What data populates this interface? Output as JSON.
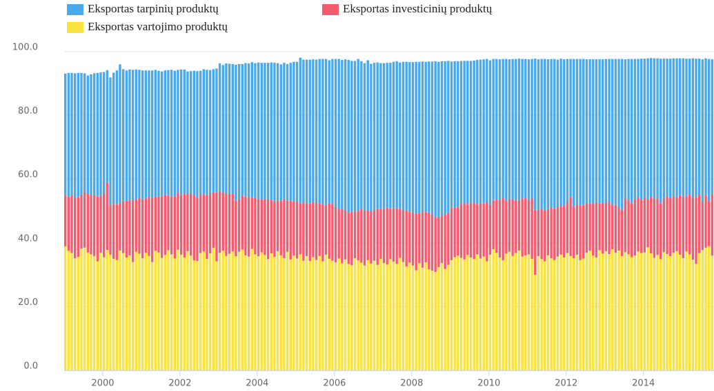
{
  "chart_data": {
    "type": "bar",
    "stacked": true,
    "categories": [
      null,
      null,
      null,
      null,
      null,
      null,
      null,
      null,
      null,
      null,
      null,
      null,
      "2000",
      null,
      null,
      null,
      null,
      null,
      null,
      null,
      null,
      null,
      null,
      null,
      null,
      null,
      null,
      null,
      null,
      null,
      null,
      null,
      null,
      null,
      null,
      null,
      "2002",
      null,
      null,
      null,
      null,
      null,
      null,
      null,
      null,
      null,
      null,
      null,
      null,
      null,
      null,
      null,
      null,
      null,
      null,
      null,
      null,
      null,
      null,
      null,
      "2004",
      null,
      null,
      null,
      null,
      null,
      null,
      null,
      null,
      null,
      null,
      null,
      null,
      null,
      null,
      null,
      null,
      null,
      null,
      null,
      null,
      null,
      null,
      null,
      "2006",
      null,
      null,
      null,
      null,
      null,
      null,
      null,
      null,
      null,
      null,
      null,
      null,
      null,
      null,
      null,
      null,
      null,
      null,
      null,
      null,
      null,
      null,
      null,
      "2008",
      null,
      null,
      null,
      null,
      null,
      null,
      null,
      null,
      null,
      null,
      null,
      null,
      null,
      null,
      null,
      null,
      null,
      null,
      null,
      null,
      null,
      null,
      null,
      "2010",
      null,
      null,
      null,
      null,
      null,
      null,
      null,
      null,
      null,
      null,
      null,
      null,
      null,
      null,
      null,
      null,
      null,
      null,
      null,
      null,
      null,
      null,
      null,
      "2012",
      null,
      null,
      null,
      null,
      null,
      null,
      null,
      null,
      null,
      null,
      null,
      null,
      null,
      null,
      null,
      null,
      null,
      null,
      null,
      null,
      null,
      null,
      null,
      "2014",
      null,
      null,
      null,
      null,
      null,
      null,
      null,
      null,
      null,
      null,
      null,
      null,
      null,
      null,
      null,
      null,
      null,
      null,
      null,
      null,
      null
    ],
    "series": [
      {
        "name": "Eksportas vartojimo produktų",
        "color": "#fbe23c",
        "values": [
          38.9,
          37.5,
          36.8,
          35.2,
          35.6,
          38.2,
          38.5,
          37.0,
          36.4,
          35.8,
          34.2,
          36.9,
          35.5,
          37.8,
          36.3,
          35.0,
          34.6,
          37.6,
          36.8,
          35.4,
          36.1,
          34.0,
          37.2,
          36.6,
          35.2,
          36.9,
          35.9,
          34.0,
          37.5,
          37.0,
          35.3,
          36.2,
          37.7,
          36.4,
          35.1,
          37.9,
          36.3,
          35.4,
          37.4,
          36.0,
          34.5,
          34.3,
          36.8,
          37.3,
          35.0,
          36.7,
          38.4,
          34.2,
          36.9,
          37.5,
          35.9,
          36.6,
          37.3,
          35.8,
          37.2,
          37.9,
          36.1,
          35.7,
          38.1,
          36.4,
          35.8,
          37.0,
          36.2,
          34.9,
          36.7,
          35.6,
          37.4,
          36.1,
          35.2,
          37.2,
          34.8,
          36.0,
          35.1,
          36.4,
          34.4,
          35.8,
          34.3,
          35.5,
          34.6,
          35.9,
          34.2,
          36.3,
          35.0,
          34.4,
          33.9,
          35.1,
          33.6,
          34.8,
          33.4,
          33.0,
          35.2,
          34.5,
          33.8,
          32.9,
          34.6,
          33.5,
          34.4,
          33.1,
          35.0,
          33.7,
          33.2,
          34.9,
          34.1,
          33.4,
          35.3,
          34.0,
          32.6,
          33.8,
          32.9,
          31.4,
          33.6,
          32.2,
          33.9,
          31.7,
          31.3,
          30.9,
          32.4,
          33.7,
          31.8,
          33.1,
          34.6,
          35.5,
          36.0,
          35.3,
          34.8,
          36.2,
          35.4,
          34.9,
          36.4,
          35.1,
          35.7,
          34.2,
          36.3,
          38.0,
          36.9,
          35.4,
          34.5,
          36.6,
          37.2,
          35.9,
          36.8,
          37.6,
          35.7,
          36.1,
          36.4,
          35.0,
          30.0,
          35.8,
          34.9,
          34.2,
          36.1,
          35.2,
          34.6,
          35.7,
          36.3,
          35.4,
          36.8,
          35.9,
          35.2,
          36.3,
          34.6,
          35.1,
          36.9,
          37.5,
          36.0,
          35.4,
          37.7,
          36.6,
          37.4,
          36.5,
          38.0,
          36.9,
          37.6,
          35.8,
          37.1,
          36.4,
          35.5,
          36.0,
          37.3,
          36.8,
          37.0,
          38.6,
          36.7,
          35.3,
          36.2,
          34.9,
          37.1,
          36.5,
          35.8,
          36.9,
          37.4,
          36.3,
          35.2,
          37.3,
          36.4,
          34.7,
          33.4,
          36.8,
          37.7,
          38.5,
          39.0,
          36.0
        ]
      },
      {
        "name": "Eksportas investicinių produktų",
        "color": "#f35b6f",
        "values": [
          16.2,
          17.0,
          18.1,
          19.0,
          18.8,
          16.9,
          17.4,
          18.5,
          18.6,
          19.3,
          20.5,
          17.9,
          19.8,
          21.2,
          15.6,
          17.2,
          17.6,
          15.0,
          16.2,
          17.9,
          17.3,
          19.4,
          16.5,
          17.6,
          18.4,
          17.0,
          18.6,
          20.2,
          17.0,
          17.6,
          19.4,
          18.9,
          17.3,
          18.1,
          19.6,
          17.8,
          18.7,
          19.9,
          18.0,
          19.4,
          20.6,
          19.8,
          18.4,
          17.9,
          20.1,
          18.8,
          17.5,
          21.6,
          19.4,
          18.2,
          19.6,
          18.8,
          18.0,
          17.4,
          16.6,
          16.9,
          18.3,
          18.6,
          16.2,
          17.8,
          18.0,
          16.6,
          17.5,
          18.9,
          16.8,
          17.4,
          15.9,
          17.2,
          18.6,
          16.0,
          18.5,
          17.1,
          17.6,
          16.0,
          18.2,
          16.5,
          18.1,
          17.2,
          18.0,
          16.5,
          17.9,
          15.6,
          17.4,
          17.8,
          17.3,
          15.4,
          17.1,
          15.3,
          16.2,
          16.7,
          14.6,
          15.8,
          16.9,
          17.3,
          15.5,
          16.4,
          15.8,
          17.6,
          15.7,
          16.9,
          17.8,
          15.8,
          16.7,
          17.5,
          15.4,
          16.3,
          17.6,
          15.9,
          16.6,
          18.0,
          15.7,
          17.4,
          15.8,
          17.8,
          17.5,
          17.3,
          15.8,
          14.8,
          17.2,
          16.4,
          16.4,
          15.5,
          15.3,
          16.9,
          17.6,
          16.0,
          17.1,
          17.7,
          15.8,
          17.3,
          16.6,
          18.6,
          15.6,
          15.4,
          16.8,
          18.1,
          19.6,
          16.7,
          16.5,
          17.9,
          16.6,
          15.8,
          18.2,
          17.9,
          17.1,
          18.9,
          20.4,
          14.6,
          15.8,
          16.1,
          14.6,
          15.9,
          16.2,
          15.6,
          15.1,
          16.4,
          16.1,
          18.5,
          16.1,
          15.6,
          17.2,
          16.8,
          15.6,
          14.8,
          16.4,
          17.2,
          14.6,
          15.9,
          15.2,
          16.3,
          13.8,
          15.0,
          13.6,
          14.6,
          16.8,
          17.1,
          16.9,
          17.6,
          17.0,
          16.7,
          17.0,
          15.1,
          17.9,
          18.6,
          17.7,
          17.4,
          16.8,
          18.0,
          18.4,
          17.6,
          16.9,
          18.6,
          19.1,
          17.4,
          18.8,
          19.6,
          21.0,
          18.4,
          15.1,
          16.4,
          14.1,
          19.2
        ]
      },
      {
        "name": "Eksportas tarpinių produktų",
        "color": "#4aa9ea",
        "values": [
          38.0,
          38.8,
          38.4,
          39.0,
          38.9,
          38.2,
          37.3,
          37.0,
          37.9,
          38.1,
          38.6,
          38.7,
          38.3,
          35.2,
          40.0,
          41.2,
          41.9,
          43.4,
          41.5,
          40.8,
          41.0,
          40.9,
          40.7,
          40.1,
          40.5,
          40.2,
          39.6,
          39.9,
          39.8,
          39.4,
          39.1,
          39.0,
          39.2,
          39.8,
          39.3,
          38.6,
          39.4,
          39.1,
          38.4,
          38.5,
          38.9,
          39.8,
          38.8,
          39.3,
          39.2,
          38.7,
          38.6,
          38.9,
          40.0,
          40.1,
          40.8,
          40.8,
          40.8,
          42.7,
          42.3,
          41.3,
          42.0,
          42.0,
          42.4,
          42.2,
          42.8,
          42.9,
          42.8,
          42.7,
          43.1,
          43.5,
          43.1,
          42.7,
          42.7,
          42.9,
          43.2,
          43.7,
          44.1,
          45.7,
          44.9,
          45.2,
          45.1,
          44.9,
          44.9,
          45.3,
          45.6,
          45.8,
          44.9,
          45.5,
          46.5,
          47.2,
          46.7,
          47.5,
          47.8,
          47.4,
          47.3,
          47.4,
          46.3,
          46.2,
          47.2,
          46.3,
          46.3,
          45.9,
          45.7,
          45.8,
          45.5,
          45.8,
          46.0,
          46.1,
          45.9,
          46.5,
          46.6,
          47.0,
          47.2,
          47.4,
          47.5,
          47.3,
          47.1,
          47.4,
          48.1,
          48.8,
          48.6,
          48.5,
          48.0,
          47.6,
          45.9,
          46.0,
          45.7,
          44.9,
          44.7,
          44.9,
          44.6,
          44.6,
          45.2,
          45.1,
          45.3,
          44.9,
          45.4,
          44.3,
          44.0,
          44.1,
          43.6,
          44.4,
          43.9,
          43.9,
          44.3,
          44.4,
          43.8,
          43.7,
          44.1,
          43.8,
          47.4,
          47.2,
          47.0,
          47.4,
          46.9,
          46.6,
          46.9,
          46.2,
          46.4,
          45.8,
          44.8,
          43.3,
          46.4,
          45.8,
          45.9,
          45.8,
          45.1,
          45.3,
          45.2,
          45.0,
          45.3,
          45.1,
          45.1,
          44.9,
          45.9,
          45.8,
          46.5,
          47.3,
          43.7,
          44.2,
          45.3,
          44.1,
          43.4,
          44.3,
          43.8,
          44.2,
          43.4,
          44.0,
          44.0,
          45.5,
          43.9,
          43.3,
          43.6,
          43.4,
          43.6,
          43.0,
          43.6,
          43.1,
          42.6,
          43.6,
          43.4,
          42.6,
          44.8,
          43.0,
          44.6,
          42.4
        ]
      }
    ],
    "ylim": [
      0,
      100
    ],
    "yticks": [
      {
        "value": 0,
        "label": "0.0"
      },
      {
        "value": 20,
        "label": "20.0"
      },
      {
        "value": 40,
        "label": "40.0"
      },
      {
        "value": 60,
        "label": "60.0"
      },
      {
        "value": 80,
        "label": "80.0"
      },
      {
        "value": 100,
        "label": "100.0"
      }
    ],
    "grid": true,
    "legend": "top-left"
  }
}
